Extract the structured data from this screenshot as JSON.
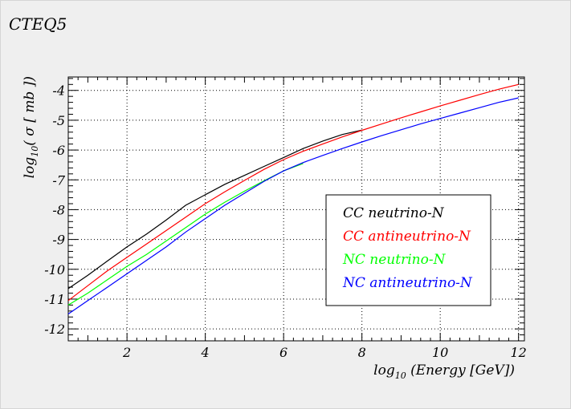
{
  "figure": {
    "title": "CTEQ5"
  },
  "chart_data": {
    "type": "line",
    "title": "CTEQ5",
    "xlabel_main": "log",
    "xlabel_sub": "10",
    "xlabel_rest": " (Energy [GeV])",
    "ylabel_main": "log",
    "ylabel_sub": "10",
    "ylabel_rest": "( σ [ mb ])",
    "xlim": [
      0.5,
      12.15
    ],
    "ylim": [
      -12.4,
      -3.55
    ],
    "x_ticks": [
      2,
      4,
      6,
      8,
      10,
      12
    ],
    "y_ticks": [
      -12,
      -11,
      -10,
      -9,
      -8,
      -7,
      -6,
      -5,
      -4
    ],
    "grid": true,
    "legend_position": "right-middle",
    "series": [
      {
        "name": "CC neutrino-N",
        "color": "#000000",
        "x": [
          0.5,
          1,
          1.5,
          2,
          2.5,
          3,
          3.5,
          4,
          4.5,
          5,
          5.5,
          6,
          6.5,
          7,
          7.5,
          8
        ],
        "y": [
          -10.65,
          -10.2,
          -9.72,
          -9.25,
          -8.82,
          -8.35,
          -7.85,
          -7.5,
          -7.15,
          -6.85,
          -6.55,
          -6.25,
          -5.95,
          -5.7,
          -5.48,
          -5.33
        ]
      },
      {
        "name": "CC antineutrino-N",
        "color": "#ff0000",
        "x": [
          0.5,
          1,
          1.5,
          2,
          2.5,
          3,
          3.5,
          4,
          4.5,
          5,
          5.5,
          6,
          6.5,
          7,
          7.5,
          8,
          8.5,
          9,
          9.5,
          10,
          10.5,
          11,
          11.5,
          12
        ],
        "y": [
          -11.05,
          -10.55,
          -10.05,
          -9.6,
          -9.15,
          -8.7,
          -8.25,
          -7.8,
          -7.4,
          -7.02,
          -6.65,
          -6.32,
          -6.04,
          -5.8,
          -5.56,
          -5.34,
          -5.13,
          -4.92,
          -4.72,
          -4.52,
          -4.33,
          -4.14,
          -3.96,
          -3.8
        ]
      },
      {
        "name": "NC neutrino-N",
        "color": "#00ff00",
        "x": [
          0.5,
          1,
          1.5,
          2,
          2.5,
          3,
          3.5,
          4,
          4.5,
          5,
          5.5,
          6,
          6.5
        ],
        "y": [
          -11.2,
          -10.8,
          -10.35,
          -9.9,
          -9.5,
          -9.05,
          -8.6,
          -8.15,
          -7.75,
          -7.38,
          -7.03,
          -6.7,
          -6.45
        ]
      },
      {
        "name": "NC antineutrino-N",
        "color": "#0000ff",
        "x": [
          0.5,
          1,
          1.5,
          2,
          2.5,
          3,
          3.5,
          4,
          4.5,
          5,
          5.5,
          6,
          6.5,
          7,
          7.5,
          8,
          8.5,
          9,
          9.5,
          10,
          10.5,
          11,
          11.5,
          12
        ],
        "y": [
          -11.5,
          -11.05,
          -10.6,
          -10.15,
          -9.7,
          -9.25,
          -8.75,
          -8.3,
          -7.85,
          -7.45,
          -7.05,
          -6.7,
          -6.42,
          -6.18,
          -5.95,
          -5.73,
          -5.52,
          -5.32,
          -5.12,
          -4.94,
          -4.76,
          -4.58,
          -4.4,
          -4.25
        ]
      }
    ]
  }
}
